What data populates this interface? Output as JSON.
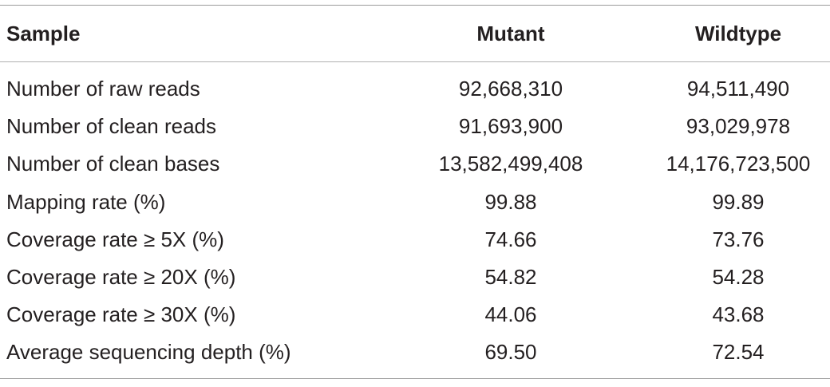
{
  "table": {
    "headers": [
      "Sample",
      "Mutant",
      "Wildtype"
    ],
    "rows": [
      {
        "label": "Number of raw reads",
        "mutant": "92,668,310",
        "wildtype": "94,511,490"
      },
      {
        "label": "Number of clean reads",
        "mutant": "91,693,900",
        "wildtype": "93,029,978"
      },
      {
        "label": "Number of clean bases",
        "mutant": "13,582,499,408",
        "wildtype": "14,176,723,500"
      },
      {
        "label": "Mapping rate (%)",
        "mutant": "99.88",
        "wildtype": "99.89"
      },
      {
        "label": "Coverage rate ≥ 5X (%)",
        "mutant": "74.66",
        "wildtype": "73.76"
      },
      {
        "label": "Coverage rate ≥ 20X (%)",
        "mutant": "54.82",
        "wildtype": "54.28"
      },
      {
        "label": "Coverage rate ≥ 30X (%)",
        "mutant": "44.06",
        "wildtype": "43.68"
      },
      {
        "label": "Average sequencing depth (%)",
        "mutant": "69.50",
        "wildtype": "72.54"
      }
    ]
  }
}
